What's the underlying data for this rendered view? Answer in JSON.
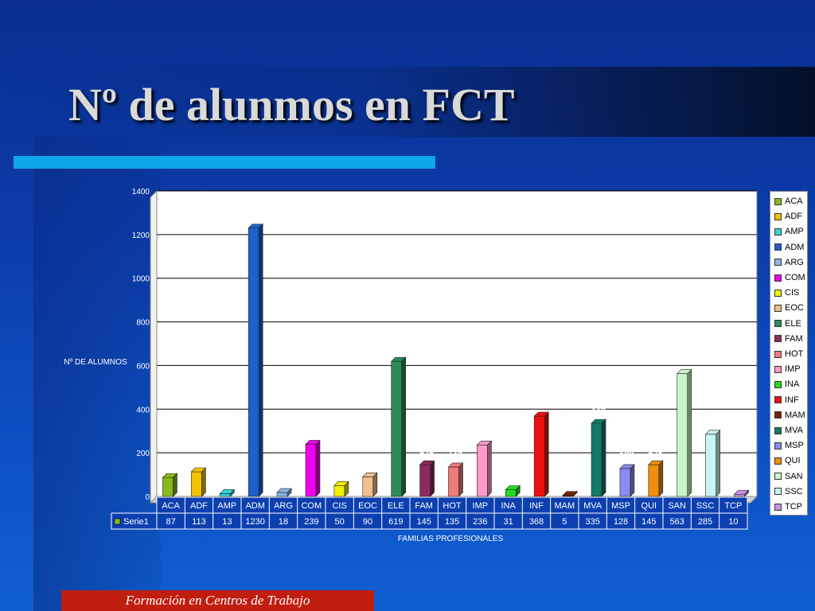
{
  "slide": {
    "title": "Nº de alunmos en FCT",
    "footer": "Formación en Centros de Trabajo"
  },
  "chart_data": {
    "type": "bar",
    "title": "",
    "ylabel": "Nº DE ALUMNOS",
    "xlabel": "FAMILIAS PROFESIONALES",
    "ylim": [
      0,
      1400
    ],
    "yticks": [
      0,
      200,
      400,
      600,
      800,
      1000,
      1200,
      1400
    ],
    "grid": true,
    "legend_placement": "right",
    "categories": [
      "ACA",
      "ADF",
      "AMP",
      "ADM",
      "ARG",
      "COM",
      "CIS",
      "EOC",
      "ELE",
      "FAM",
      "HOT",
      "IMP",
      "INA",
      "INF",
      "MAM",
      "MVA",
      "MSP",
      "QUI",
      "SAN",
      "SSC",
      "TCP"
    ],
    "series": [
      {
        "name": "Serie1",
        "values": [
          87,
          113,
          13,
          1230,
          18,
          239,
          50,
          90,
          619,
          145,
          135,
          236,
          31,
          368,
          5,
          335,
          128,
          145,
          563,
          285,
          10
        ]
      }
    ],
    "colors": [
      "#8ab81e",
      "#f2c200",
      "#33d6d6",
      "#1f5fcc",
      "#8ab4e8",
      "#f000f0",
      "#f0f000",
      "#f2bf8f",
      "#2e8b57",
      "#8b2b5a",
      "#f07a7a",
      "#ff99cc",
      "#22dd22",
      "#f01010",
      "#7a2200",
      "#137a6a",
      "#8a8af0",
      "#f0900a",
      "#c8f5c8",
      "#c8f5f5",
      "#c890e8"
    ],
    "table": {
      "legend_key": "Serie1"
    }
  }
}
